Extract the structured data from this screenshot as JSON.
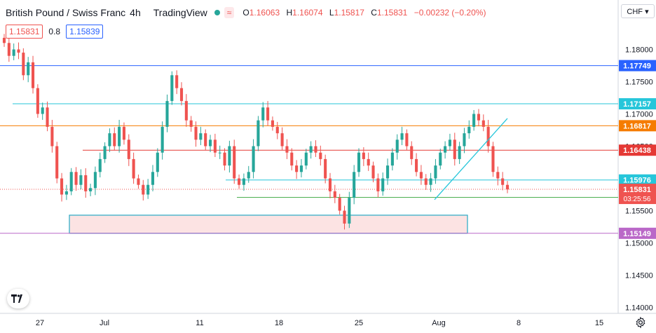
{
  "header": {
    "symbol": "British Pound / Swiss Franc",
    "interval": "4h",
    "brand": "TradingView",
    "open_label": "O",
    "open": "1.16063",
    "high_label": "H",
    "high": "1.16074",
    "low_label": "L",
    "low": "1.15817",
    "close_label": "C",
    "close": "1.15831",
    "change": "−0.00232 (−0.20%)"
  },
  "quote": {
    "bid": "1.15831",
    "spread": "0.8",
    "ask": "1.15839"
  },
  "currency_button": "CHF ▾",
  "icons": {
    "logo": "tradingview-logo-icon",
    "settings": "gear-icon",
    "status": "market-open-dot-icon",
    "wave": "wave-icon"
  },
  "colors": {
    "up": "#26a69a",
    "down": "#ef5350",
    "blue": "#2962ff",
    "orange": "#f57c00",
    "purple": "#9c27b0",
    "cyan": "#26c6da",
    "green": "#4caf50"
  },
  "chart_data": {
    "type": "candlestick",
    "ylim": [
      1.137,
      1.185
    ],
    "y_ticks": [
      "1.18000",
      "1.17500",
      "1.17000",
      "1.16500",
      "1.16000",
      "1.15500",
      "1.15000",
      "1.14500",
      "1.14000"
    ],
    "x_ticks": [
      "27",
      "Jul",
      "11",
      "18",
      "25",
      "Aug",
      "8",
      "15"
    ],
    "price_levels": [
      {
        "label": "1.17749",
        "value": 1.17749,
        "color": "#2962ff"
      },
      {
        "label": "1.17157",
        "value": 1.17157,
        "color": "#26c6da"
      },
      {
        "label": "1.16817",
        "value": 1.16817,
        "color": "#f57c00"
      },
      {
        "label": "1.16438",
        "value": 1.16438,
        "color": "#e53935"
      },
      {
        "label": "1.15976",
        "value": 1.15976,
        "color": "#26c6da"
      },
      {
        "label": "1.15707",
        "value": 1.15707,
        "color": "#4caf50"
      },
      {
        "label": "1.15149",
        "value": 1.15149,
        "color": "#ba68c8"
      }
    ],
    "last_price": {
      "label": "1.15831",
      "countdown": "03:25:56",
      "value": 1.15831
    },
    "support_zone": {
      "top": 1.1543,
      "bottom": 1.1515
    },
    "trendline": [
      [
        1.1567
      ],
      [
        1.1693
      ]
    ],
    "candles": [
      1.181,
      1.179,
      1.18,
      1.1795,
      1.176,
      1.178,
      1.174,
      1.17,
      1.171,
      1.168,
      1.165,
      1.16,
      1.1575,
      1.158,
      1.161,
      1.159,
      1.1605,
      1.158,
      1.1585,
      1.161,
      1.163,
      1.165,
      1.167,
      1.165,
      1.168,
      1.166,
      1.163,
      1.16,
      1.159,
      1.1575,
      1.159,
      1.161,
      1.164,
      1.168,
      1.172,
      1.176,
      1.174,
      1.172,
      1.169,
      1.168,
      1.166,
      1.167,
      1.165,
      1.166,
      1.164,
      1.164,
      1.162,
      1.165,
      1.16,
      1.159,
      1.16,
      1.161,
      1.165,
      1.169,
      1.171,
      1.169,
      1.168,
      1.167,
      1.165,
      1.164,
      1.162,
      1.161,
      1.162,
      1.164,
      1.165,
      1.164,
      1.163,
      1.16,
      1.158,
      1.157,
      1.155,
      1.153,
      1.157,
      1.161,
      1.164,
      1.163,
      1.162,
      1.16,
      1.158,
      1.16,
      1.162,
      1.164,
      1.166,
      1.167,
      1.165,
      1.163,
      1.161,
      1.16,
      1.159,
      1.16,
      1.162,
      1.164,
      1.165,
      1.166,
      1.163,
      1.165,
      1.167,
      1.168,
      1.17,
      1.169,
      1.168,
      1.165,
      1.161,
      1.16,
      1.159,
      1.1583
    ]
  }
}
